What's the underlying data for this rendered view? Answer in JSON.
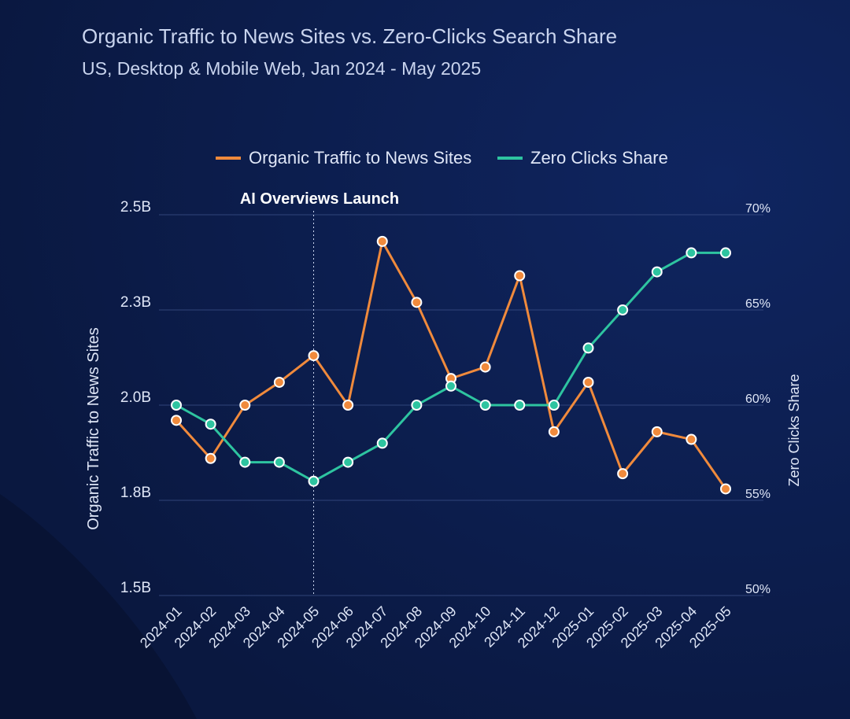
{
  "title": "Organic Traffic to News Sites vs. Zero-Clicks Search Share",
  "subtitle": "US, Desktop & Mobile Web, Jan 2024 - May 2025",
  "colors": {
    "organic": "#f08a3c",
    "zero_clicks": "#2ec4a0",
    "grid": "#3a4f86",
    "text": "#dfe6f7"
  },
  "chart_data": {
    "type": "line",
    "x": [
      "2024-01",
      "2024-02",
      "2024-03",
      "2024-04",
      "2024-05",
      "2024-06",
      "2024-07",
      "2024-08",
      "2024-09",
      "2024-10",
      "2024-11",
      "2024-12",
      "2025-01",
      "2025-02",
      "2025-03",
      "2025-04",
      "2025-05"
    ],
    "series": [
      {
        "name": "Organic Traffic to News Sites",
        "axis": "left",
        "values": [
          1.96,
          1.86,
          2.0,
          2.06,
          2.13,
          2.0,
          2.43,
          2.27,
          2.07,
          2.1,
          2.34,
          1.93,
          2.06,
          1.82,
          1.93,
          1.91,
          1.78
        ]
      },
      {
        "name": "Zero Clicks Share",
        "axis": "right",
        "values": [
          60,
          59,
          57,
          57,
          56,
          57,
          58,
          60,
          61,
          60,
          60,
          60,
          63,
          65,
          67,
          68,
          68
        ]
      }
    ],
    "ylabel": "Organic Traffic to News Sites",
    "y2label": "Zero Clicks Share",
    "yticks": [
      "1.5B",
      "1.8B",
      "2.0B",
      "2.3B",
      "2.5B"
    ],
    "y2ticks": [
      "50%",
      "55%",
      "60%",
      "65%",
      "70%"
    ],
    "ylim": [
      1.5,
      2.5
    ],
    "y2lim": [
      50,
      70
    ],
    "annotation": {
      "label": "AI Overviews Launch",
      "x": "2024-05"
    },
    "legend": "top-center",
    "grid": true
  }
}
